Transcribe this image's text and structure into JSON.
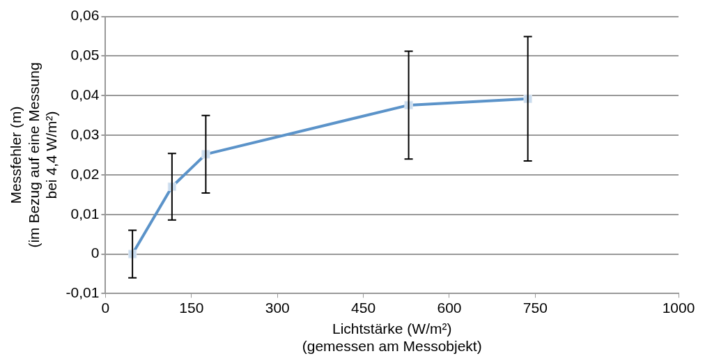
{
  "chart_data": {
    "type": "line",
    "xlabel": "Lichtstärke (W/m²)\n(gemessen am Messobjekt)",
    "ylabel": "Messfehler (m)\n(im Bezug auf eine Messung\nbei 4,4 W/m²)",
    "x": [
      47,
      116,
      175,
      529,
      737
    ],
    "series": [
      {
        "color": "#5b93c9",
        "values": [
          0,
          0.017,
          0.0252,
          0.0376,
          0.0392
        ],
        "errors": [
          0.006,
          0.0084,
          0.0098,
          0.0136,
          0.0157
        ]
      }
    ],
    "xlim": [
      0,
      1000
    ],
    "xticks": [
      0,
      150,
      300,
      450,
      600,
      750,
      1000
    ],
    "ylim": [
      -0.01,
      0.06
    ],
    "yticks": [
      {
        "value": -0.01,
        "label": "-0,01"
      },
      {
        "value": 0,
        "label": "0"
      },
      {
        "value": 0.01,
        "label": "0,01"
      },
      {
        "value": 0.02,
        "label": "0,02"
      },
      {
        "value": 0.03,
        "label": "0,03"
      },
      {
        "value": 0.04,
        "label": "0,04"
      },
      {
        "value": 0.05,
        "label": "0,05"
      },
      {
        "value": 0.06,
        "label": "0,06"
      }
    ],
    "grid": "y",
    "legend": false,
    "marker": "square",
    "line_style": "solid"
  }
}
